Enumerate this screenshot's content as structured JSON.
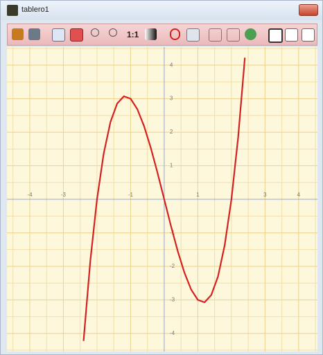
{
  "window": {
    "title": "tablero1"
  },
  "toolbar": {
    "zoom_label": "1:1"
  },
  "chart_data": {
    "type": "line",
    "x": [
      -2.4,
      -2.2,
      -2.0,
      -1.8,
      -1.6,
      -1.4,
      -1.2,
      -1.0,
      -0.8,
      -0.6,
      -0.4,
      -0.2,
      0,
      0.2,
      0.4,
      0.6,
      0.8,
      1.0,
      1.2,
      1.4,
      1.6,
      1.8,
      2.0,
      2.2,
      2.4
    ],
    "series": [
      {
        "color": "#d42020",
        "values": [
          -4.224,
          -1.848,
          0,
          1.368,
          2.304,
          2.856,
          3.072,
          3,
          2.688,
          2.184,
          1.536,
          0.792,
          0,
          -0.792,
          -1.536,
          -2.184,
          -2.688,
          -3,
          -3.072,
          -2.856,
          -2.304,
          -1.368,
          0,
          1.848,
          4.224
        ]
      }
    ],
    "xlim": [
      -4.68,
      4.56
    ],
    "ylim": [
      -4.54,
      4.54
    ],
    "xticks": [
      -4,
      -3,
      -1,
      1,
      3,
      4
    ],
    "yticks": [
      -4,
      -3,
      -2,
      -1,
      1,
      2,
      3,
      4
    ],
    "grid": true
  }
}
